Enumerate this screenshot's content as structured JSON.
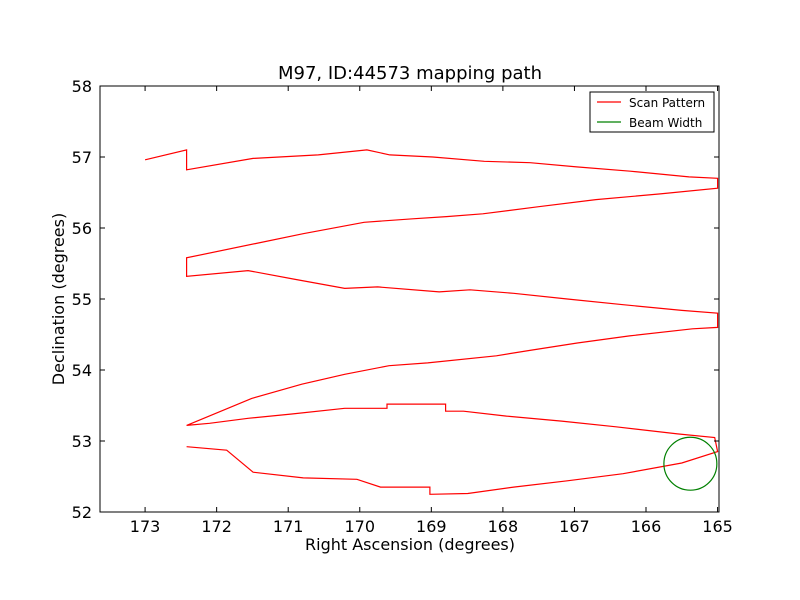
{
  "chart_data": {
    "type": "line",
    "title": "M97, ID:44573 mapping path",
    "xlabel": "Right Ascension (degrees)",
    "ylabel": "Declination (degrees)",
    "xlim": [
      173.63,
      164.98
    ],
    "ylim": [
      52,
      58
    ],
    "x_inverted": true,
    "xticks": [
      173,
      172,
      171,
      170,
      169,
      168,
      167,
      166,
      165
    ],
    "yticks": [
      52,
      53,
      54,
      55,
      56,
      57,
      58
    ],
    "grid": false,
    "legend": {
      "placement": "top-right",
      "entries": [
        {
          "label": "Scan Pattern",
          "color": "#ff0000"
        },
        {
          "label": "Beam Width",
          "color": "#008000"
        }
      ]
    },
    "series": [
      {
        "name": "Scan Pattern",
        "color": "#ff0000",
        "points": [
          [
            172.42,
            52.92
          ],
          [
            171.86,
            52.87
          ],
          [
            171.49,
            52.56
          ],
          [
            170.79,
            52.48
          ],
          [
            170.04,
            52.46
          ],
          [
            169.71,
            52.35
          ],
          [
            169.02,
            52.35
          ],
          [
            169.02,
            52.25
          ],
          [
            168.49,
            52.26
          ],
          [
            167.85,
            52.35
          ],
          [
            167.1,
            52.44
          ],
          [
            166.32,
            52.54
          ],
          [
            165.5,
            52.69
          ],
          [
            165.0,
            52.85
          ],
          [
            165.04,
            53.05
          ],
          [
            165.56,
            53.1
          ],
          [
            166.42,
            53.2
          ],
          [
            167.18,
            53.28
          ],
          [
            167.95,
            53.35
          ],
          [
            168.55,
            53.42
          ],
          [
            168.8,
            53.42
          ],
          [
            168.8,
            53.52
          ],
          [
            169.62,
            53.52
          ],
          [
            169.62,
            53.46
          ],
          [
            170.21,
            53.46
          ],
          [
            170.95,
            53.38
          ],
          [
            171.56,
            53.32
          ],
          [
            172.1,
            53.25
          ],
          [
            172.42,
            53.22
          ],
          [
            171.51,
            53.6
          ],
          [
            170.81,
            53.8
          ],
          [
            170.21,
            53.94
          ],
          [
            169.59,
            54.06
          ],
          [
            169.05,
            54.1
          ],
          [
            168.09,
            54.2
          ],
          [
            167.6,
            54.28
          ],
          [
            166.96,
            54.38
          ],
          [
            166.23,
            54.48
          ],
          [
            165.35,
            54.58
          ],
          [
            165.0,
            54.6
          ],
          [
            165.0,
            54.8
          ],
          [
            165.5,
            54.84
          ],
          [
            166.32,
            54.92
          ],
          [
            167.1,
            55.0
          ],
          [
            167.85,
            55.08
          ],
          [
            168.46,
            55.13
          ],
          [
            168.89,
            55.1
          ],
          [
            169.75,
            55.17
          ],
          [
            170.21,
            55.15
          ],
          [
            170.92,
            55.28
          ],
          [
            171.56,
            55.4
          ],
          [
            172.42,
            55.32
          ],
          [
            172.42,
            55.58
          ],
          [
            171.46,
            55.78
          ],
          [
            170.79,
            55.92
          ],
          [
            169.94,
            56.08
          ],
          [
            169.26,
            56.13
          ],
          [
            168.79,
            56.16
          ],
          [
            168.28,
            56.2
          ],
          [
            167.5,
            56.3
          ],
          [
            166.7,
            56.4
          ],
          [
            165.8,
            56.48
          ],
          [
            165.0,
            56.56
          ],
          [
            165.0,
            56.7
          ],
          [
            165.4,
            56.72
          ],
          [
            166.22,
            56.8
          ],
          [
            166.97,
            56.86
          ],
          [
            167.62,
            56.92
          ],
          [
            168.26,
            56.94
          ],
          [
            168.98,
            57.0
          ],
          [
            169.58,
            57.03
          ],
          [
            169.9,
            57.1
          ],
          [
            170.58,
            57.03
          ],
          [
            171.49,
            56.98
          ],
          [
            172.42,
            56.82
          ],
          [
            172.42,
            57.1
          ],
          [
            173.0,
            56.96
          ]
        ]
      },
      {
        "name": "Beam Width",
        "color": "#008000",
        "center": [
          165.38,
          52.68
        ],
        "radius_ra": 0.37
      }
    ]
  }
}
